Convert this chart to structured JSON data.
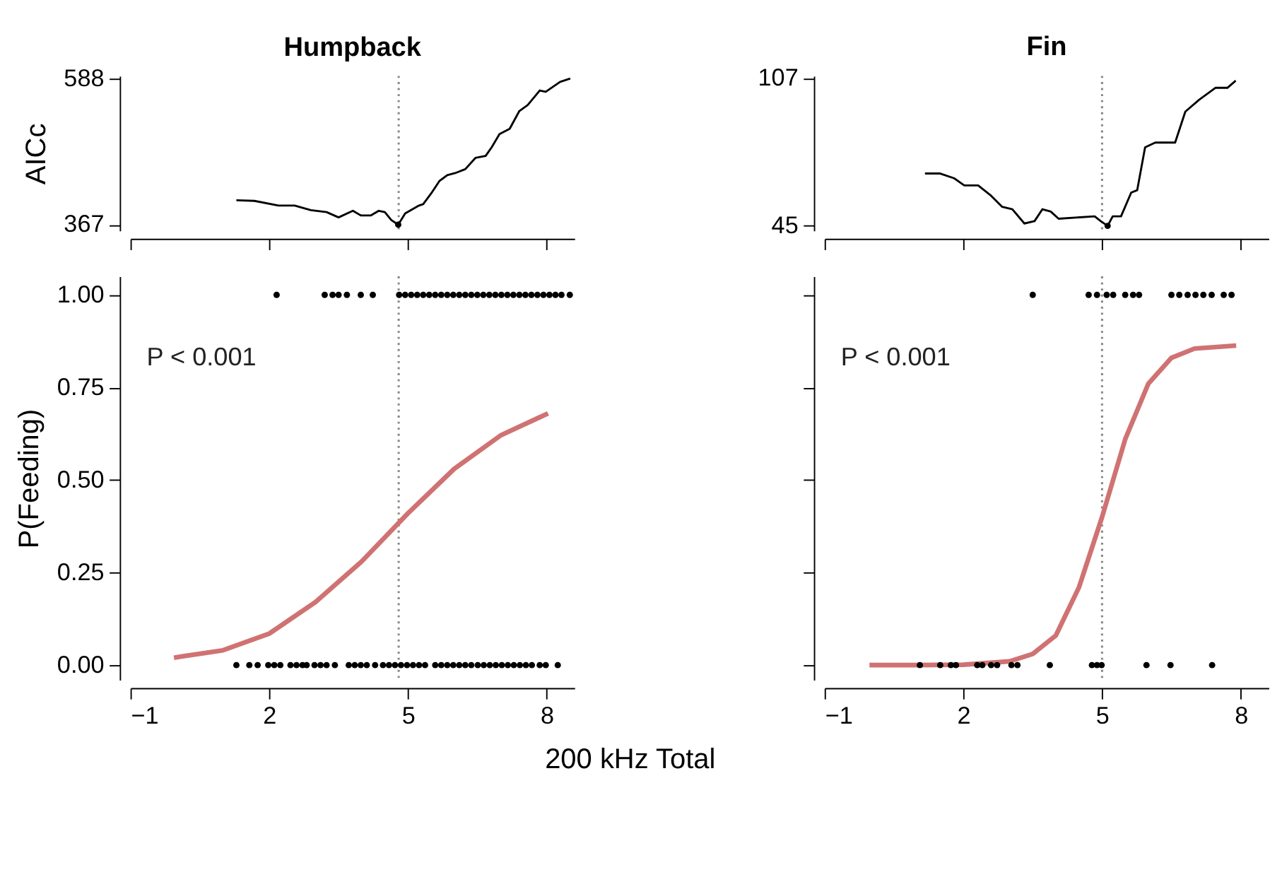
{
  "chart_data": [
    {
      "type": "line",
      "title": "Humpback",
      "ylabel": "AICc",
      "xlim": [
        -1,
        8.6
      ],
      "xticks": [
        {
          "value": -1,
          "label": null
        },
        {
          "value": 2,
          "label": null
        },
        {
          "value": 5,
          "label": null
        },
        {
          "value": 8,
          "label": null
        }
      ],
      "ylim": [
        358,
        592
      ],
      "yticks": [
        367,
        588
      ],
      "tick_labels": "y",
      "series": [
        {
          "type": "line",
          "color": "#000000",
          "x": [
            1.29,
            1.68,
            2.2,
            2.55,
            2.9,
            3.24,
            3.5,
            3.81,
            3.98,
            4.2,
            4.37,
            4.5,
            4.64,
            4.79,
            4.94,
            5.24,
            5.33,
            5.5,
            5.68,
            5.85,
            6.02,
            6.24,
            6.46,
            6.68,
            6.81,
            6.98,
            7.2,
            7.41,
            7.59,
            7.85,
            7.98,
            8.29,
            8.51
          ],
          "values": [
            404,
            403,
            396,
            396,
            389,
            386,
            378,
            388,
            381,
            381,
            388,
            386,
            374,
            367,
            384,
            396,
            398,
            414,
            433,
            442,
            445,
            451,
            468,
            471,
            484,
            504,
            512,
            539,
            548,
            570,
            568,
            583,
            588
          ]
        },
        {
          "type": "scatter",
          "marker": "circle",
          "color": "#000000",
          "x": [
            4.79
          ],
          "values": [
            367
          ]
        }
      ],
      "ref_lines": [
        {
          "axis": "x",
          "value": 4.8,
          "color": "#888888",
          "line_style": "dotted"
        }
      ]
    },
    {
      "type": "line",
      "title": "Fin",
      "xlim": [
        -1,
        8.6
      ],
      "xticks": [
        {
          "value": -1,
          "label": null
        },
        {
          "value": 2,
          "label": null
        },
        {
          "value": 5,
          "label": null
        },
        {
          "value": 8,
          "label": null
        }
      ],
      "ylim": [
        43,
        108
      ],
      "yticks": [
        45,
        107
      ],
      "tick_labels": "y",
      "series": [
        {
          "type": "line",
          "color": "#000000",
          "x": [
            1.17,
            1.5,
            1.8,
            2.02,
            2.32,
            2.58,
            2.84,
            3.06,
            3.32,
            3.54,
            3.71,
            3.89,
            4.06,
            4.84,
            4.97,
            5.12,
            5.23,
            5.41,
            5.63,
            5.76,
            5.93,
            6.15,
            6.58,
            6.8,
            7.1,
            7.45,
            7.71,
            7.89
          ],
          "values": [
            67,
            67,
            65,
            62,
            62,
            58,
            53,
            52,
            46,
            47,
            52,
            51,
            48,
            49,
            47,
            45,
            49,
            49,
            59,
            60,
            78,
            80,
            80,
            93,
            98,
            103,
            103,
            106
          ]
        },
        {
          "type": "scatter",
          "marker": "circle",
          "color": "#000000",
          "x": [
            5.12
          ],
          "values": [
            45
          ]
        }
      ],
      "ref_lines": [
        {
          "axis": "x",
          "value": 5.0,
          "color": "#888888",
          "line_style": "dotted"
        }
      ]
    },
    {
      "type": "scatter",
      "ylabel": "P(Feeding)",
      "xlabel": "200 kHz Total",
      "annotations": [
        "P < 0.001"
      ],
      "xlim": [
        -1,
        8.6
      ],
      "xticks": [
        {
          "value": -1,
          "label": "−1"
        },
        2,
        5,
        8
      ],
      "ylim": [
        -0.04,
        1.05
      ],
      "yticks": [
        {
          "value": 0,
          "label": "0.00"
        },
        {
          "value": 0.25,
          "label": "0.25"
        },
        {
          "value": 0.5,
          "label": "0.50"
        },
        {
          "value": 0.75,
          "label": "0.75"
        },
        {
          "value": 1,
          "label": "1.00"
        }
      ],
      "series": [
        {
          "type": "scatter",
          "marker": "circle",
          "color": "#000000",
          "x": [
            2.16,
            3.2,
            3.37,
            3.5,
            3.68,
            3.98,
            4.24,
            4.81,
            4.94,
            5.07,
            5.2,
            5.33,
            5.46,
            5.59,
            5.72,
            5.85,
            5.98,
            6.11,
            6.24,
            6.37,
            6.5,
            6.63,
            6.76,
            6.89,
            7.02,
            7.15,
            7.28,
            7.41,
            7.54,
            7.67,
            7.8,
            7.93,
            8.06,
            8.19,
            8.32,
            8.5,
            1.29,
            1.57,
            1.75,
            1.98,
            2.11,
            2.24,
            2.46,
            2.59,
            2.72,
            2.81,
            2.98,
            3.11,
            3.24,
            3.42,
            3.72,
            3.85,
            3.98,
            4.11,
            4.29,
            4.46,
            4.59,
            4.72,
            4.85,
            4.98,
            5.11,
            5.24,
            5.37,
            5.59,
            5.72,
            5.85,
            5.98,
            6.11,
            6.24,
            6.37,
            6.51,
            6.64,
            6.77,
            6.9,
            7.03,
            7.16,
            7.29,
            7.42,
            7.55,
            7.68,
            7.85,
            7.98,
            8.24
          ],
          "values": [
            1,
            1,
            1,
            1,
            1,
            1,
            1,
            1,
            1,
            1,
            1,
            1,
            1,
            1,
            1,
            1,
            1,
            1,
            1,
            1,
            1,
            1,
            1,
            1,
            1,
            1,
            1,
            1,
            1,
            1,
            1,
            1,
            1,
            1,
            1,
            1,
            0,
            0,
            0,
            0,
            0,
            0,
            0,
            0,
            0,
            0,
            0,
            0,
            0,
            0,
            0,
            0,
            0,
            0,
            0,
            0,
            0,
            0,
            0,
            0,
            0,
            0,
            0,
            0,
            0,
            0,
            0,
            0,
            0,
            0,
            0,
            0,
            0,
            0,
            0,
            0,
            0,
            0,
            0,
            0,
            0,
            0,
            0
          ]
        },
        {
          "type": "line",
          "color": "#d07272",
          "x": [
            -0.06,
            1,
            2,
            3,
            4,
            5,
            6,
            7,
            8.03
          ],
          "values": [
            0.02,
            0.04,
            0.085,
            0.17,
            0.28,
            0.41,
            0.53,
            0.62,
            0.68
          ]
        }
      ],
      "ref_lines": [
        {
          "axis": "x",
          "value": 4.8,
          "color": "#888888",
          "line_style": "dotted"
        }
      ]
    },
    {
      "type": "scatter",
      "annotations": [
        "P < 0.001"
      ],
      "xlim": [
        -1,
        8.6
      ],
      "xticks": [
        {
          "value": -1,
          "label": "−1"
        },
        2,
        5,
        8
      ],
      "ylim": [
        -0.04,
        1.05
      ],
      "yticks": [
        {
          "value": 0,
          "label": null
        },
        {
          "value": 0.25,
          "label": null
        },
        {
          "value": 0.5,
          "label": null
        },
        {
          "value": 0.75,
          "label": null
        },
        {
          "value": 1,
          "label": null
        }
      ],
      "tick_labels": "x",
      "series": [
        {
          "type": "scatter",
          "marker": "circle",
          "color": "#000000",
          "x": [
            3.5,
            4.71,
            4.89,
            5.1,
            5.24,
            5.5,
            5.67,
            5.8,
            6.5,
            6.67,
            6.85,
            7.02,
            7.19,
            7.37,
            7.63,
            7.8,
            1.06,
            1.5,
            1.73,
            1.84,
            2.3,
            2.41,
            2.6,
            2.73,
            3.04,
            3.17,
            3.87,
            4.78,
            4.89,
            4.99,
            5.96,
            6.48,
            7.38
          ],
          "values": [
            1,
            1,
            1,
            1,
            1,
            1,
            1,
            1,
            1,
            1,
            1,
            1,
            1,
            1,
            1,
            1,
            0,
            0,
            0,
            0,
            0,
            0,
            0,
            0,
            0,
            0,
            0,
            0,
            0,
            0,
            0,
            0,
            0
          ]
        },
        {
          "type": "line",
          "color": "#d07272",
          "x": [
            -0.03,
            1,
            2,
            3,
            3.5,
            4,
            4.5,
            5,
            5.5,
            6,
            6.5,
            7,
            7.9
          ],
          "values": [
            0,
            0,
            0.001,
            0.01,
            0.03,
            0.08,
            0.21,
            0.4,
            0.61,
            0.76,
            0.83,
            0.855,
            0.863
          ]
        }
      ],
      "ref_lines": [
        {
          "axis": "x",
          "value": 5.0,
          "color": "#888888",
          "line_style": "dotted"
        }
      ]
    }
  ]
}
